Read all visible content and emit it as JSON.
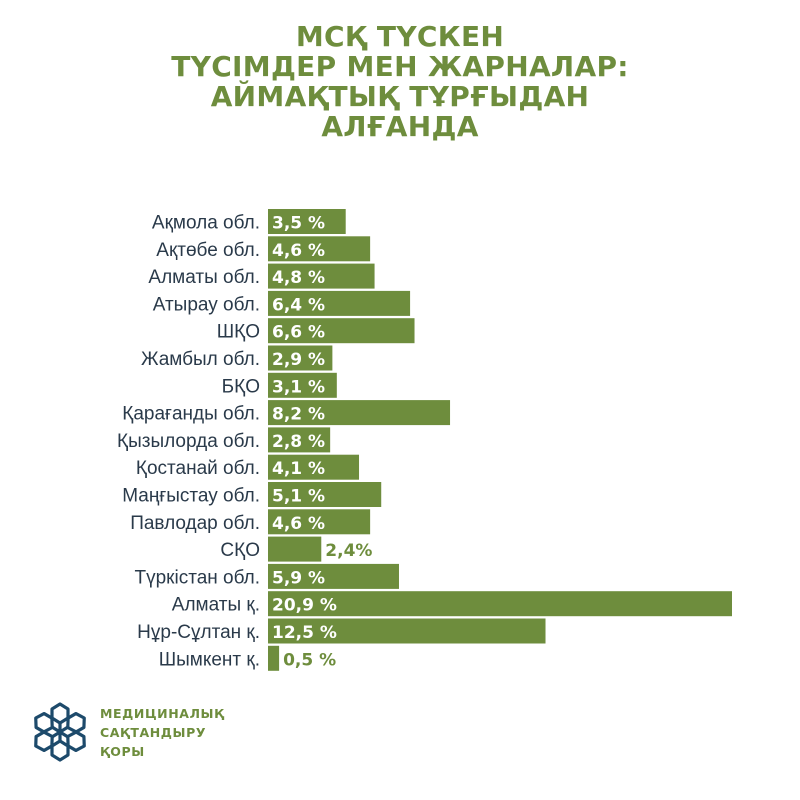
{
  "title_lines": [
    "МСҚ ТҮСКЕН",
    "ТҮСІМДЕР МЕН ЖАРНАЛАР:",
    "АЙМАҚТЫҚ ТҰРҒЫДАН",
    "АЛҒАНДА"
  ],
  "chart_data": {
    "type": "bar",
    "orientation": "horizontal",
    "title": "МСҚ ТҮСКЕН ТҮСІМДЕР МЕН ЖАРНАЛАР: АЙМАҚТЫҚ ТҰРҒЫДАН АЛҒАНДА",
    "categories": [
      "Ақмола обл.",
      "Ақтөбе обл.",
      "Алматы обл.",
      "Атырау обл.",
      "ШҚО",
      "Жамбыл обл.",
      "БҚО",
      "Қарағанды обл.",
      "Қызылорда обл.",
      "Қостанай обл.",
      "Маңғыстау обл.",
      "Павлодар обл.",
      "СҚО",
      "Түркістан обл.",
      "Алматы қ.",
      "Нұр-Сұлтан қ.",
      "Шымкент қ."
    ],
    "values": [
      3.5,
      4.6,
      4.8,
      6.4,
      6.6,
      2.9,
      3.1,
      8.2,
      2.8,
      4.1,
      5.1,
      4.6,
      2.4,
      5.9,
      20.9,
      12.5,
      0.5
    ],
    "value_labels": [
      "3,5  %",
      "4,6  %",
      "4,8  %",
      "6,4  %",
      "6,6  %",
      "2,9 %",
      "3,1 %",
      "8,2  %",
      "2,8 %",
      "4,1  %",
      "5,1  %",
      "4,6  %",
      "2,4%",
      "5,9 %",
      "20,9 %",
      "12,5 %",
      "0,5 %"
    ],
    "unit": "%",
    "xlim": [
      0,
      20.9
    ],
    "grid": false,
    "legend": "none",
    "bar_color": "#6e8d3d",
    "label_color": "#ffffff",
    "outside_label_color": "#6e8d3d"
  },
  "logo": {
    "icon": "medical-insurance-fund-logo-icon",
    "text_lines": [
      "МЕДИЦИНАЛЫҚ",
      "САҚТАНДЫРУ",
      "ҚОРЫ"
    ],
    "icon_color": "#1d4a6b"
  }
}
